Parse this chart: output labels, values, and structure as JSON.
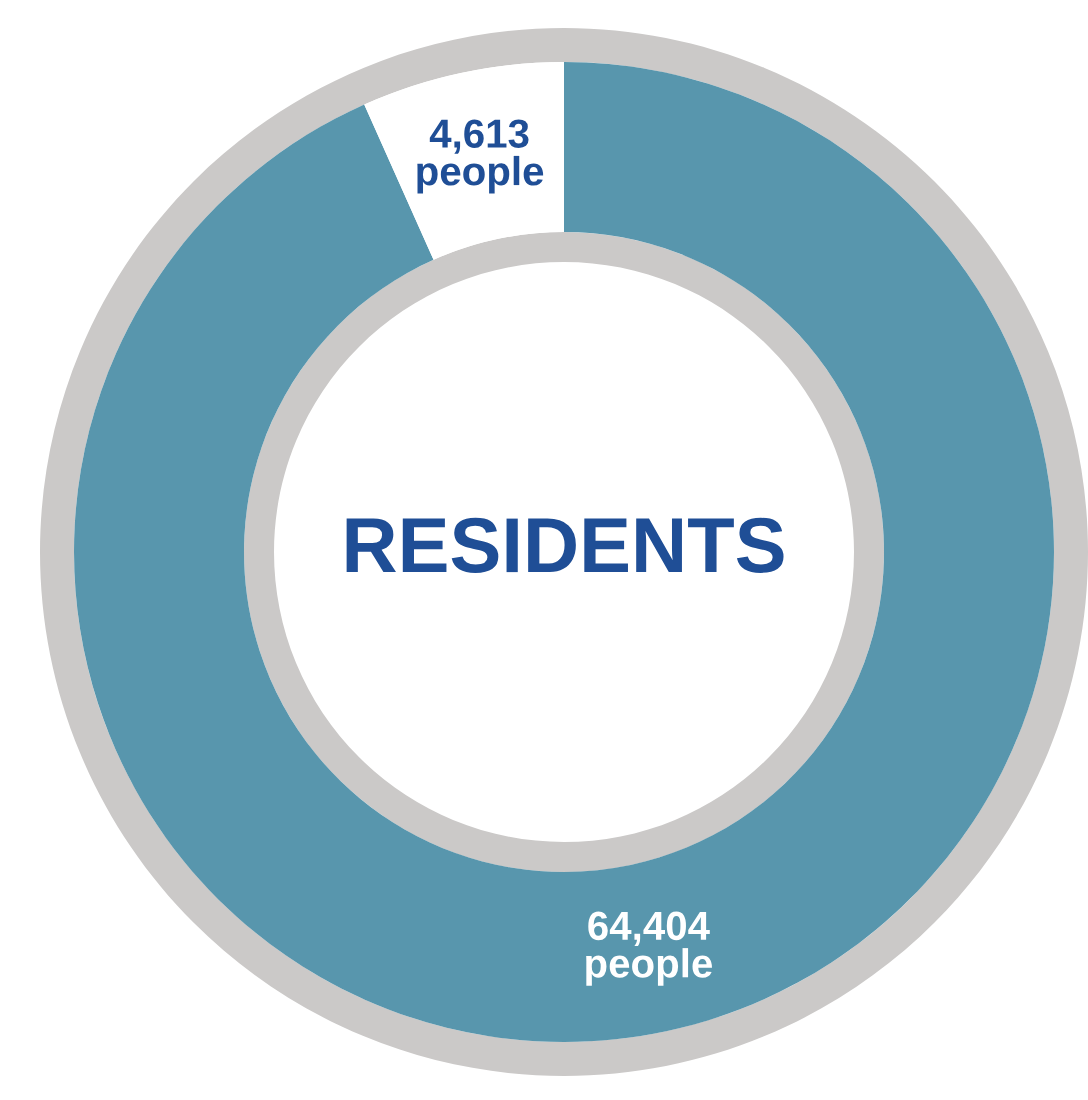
{
  "chart_data": {
    "type": "donut",
    "categories": [
      null,
      null
    ],
    "values": [
      64404,
      4613
    ],
    "colors": [
      "#5896ad",
      "#ffffff"
    ],
    "value_labels": [
      "64,404\npeople",
      "4,613\npeople"
    ],
    "annotations": [
      "RESIDENTS"
    ]
  }
}
